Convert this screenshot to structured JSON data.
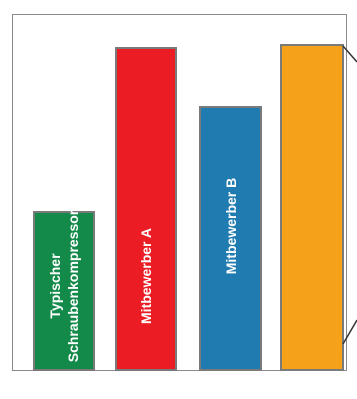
{
  "chart_data": {
    "type": "bar",
    "title": "",
    "xlabel": "",
    "ylabel": "",
    "categories": [
      "Typischer Schraubenkompressor",
      "Mitbewerber A",
      "Mitbewerber B",
      ""
    ],
    "category_lines": [
      [
        "Typischer",
        "Schraubenkompressor"
      ],
      [
        "Mitbewerber A"
      ],
      [
        "Mitbewerber B"
      ],
      []
    ],
    "values": [
      0.49,
      0.99,
      0.81,
      1.0
    ],
    "value_unit": "relative to tallest bar",
    "colors": [
      "#138a4a",
      "#ec1c24",
      "#1f7bb0",
      "#f5a21a"
    ],
    "grid": false,
    "legend": "none",
    "callout_on_last_bar": true
  }
}
